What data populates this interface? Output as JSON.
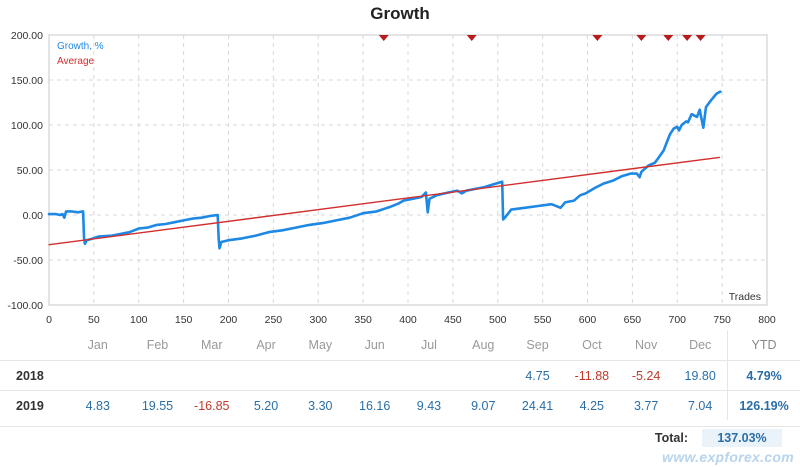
{
  "chart_data": {
    "type": "line",
    "title": "Growth",
    "xlabel": "Trades",
    "ylabel": "",
    "xlim": [
      0,
      800
    ],
    "ylim": [
      -100,
      200
    ],
    "x_ticks": [
      0,
      50,
      100,
      150,
      200,
      250,
      300,
      350,
      400,
      450,
      500,
      550,
      600,
      650,
      700,
      750,
      800
    ],
    "y_ticks": [
      "-100.00",
      "-50.00",
      "0.00",
      "50.00",
      "100.00",
      "150.00",
      "200.00"
    ],
    "y_tick_values": [
      -100,
      -50,
      0,
      50,
      100,
      150,
      200
    ],
    "grid": true,
    "legend_position": "top-left",
    "series": [
      {
        "name": "Growth, %",
        "color": "#1e88e5",
        "points": [
          [
            0,
            1
          ],
          [
            8,
            1
          ],
          [
            12,
            0
          ],
          [
            15,
            1
          ],
          [
            17,
            -3
          ],
          [
            19,
            4
          ],
          [
            25,
            4
          ],
          [
            32,
            3
          ],
          [
            38,
            4
          ],
          [
            39,
            -25
          ],
          [
            40,
            -32
          ],
          [
            42,
            -28
          ],
          [
            46,
            -27
          ],
          [
            55,
            -24
          ],
          [
            70,
            -23
          ],
          [
            80,
            -21
          ],
          [
            90,
            -19
          ],
          [
            100,
            -15
          ],
          [
            110,
            -14
          ],
          [
            120,
            -11
          ],
          [
            130,
            -10
          ],
          [
            140,
            -8
          ],
          [
            150,
            -6
          ],
          [
            160,
            -4
          ],
          [
            170,
            -3
          ],
          [
            180,
            -1
          ],
          [
            188,
            0
          ],
          [
            189,
            -25
          ],
          [
            190,
            -37
          ],
          [
            192,
            -30
          ],
          [
            200,
            -28
          ],
          [
            215,
            -26
          ],
          [
            230,
            -23
          ],
          [
            245,
            -19
          ],
          [
            260,
            -17
          ],
          [
            275,
            -14
          ],
          [
            290,
            -11
          ],
          [
            305,
            -9
          ],
          [
            320,
            -6
          ],
          [
            335,
            -3
          ],
          [
            350,
            2
          ],
          [
            365,
            4
          ],
          [
            380,
            9
          ],
          [
            390,
            13
          ],
          [
            395,
            16
          ],
          [
            405,
            18
          ],
          [
            415,
            20
          ],
          [
            420,
            25
          ],
          [
            422,
            3
          ],
          [
            424,
            18
          ],
          [
            432,
            22
          ],
          [
            445,
            25
          ],
          [
            455,
            27
          ],
          [
            460,
            24
          ],
          [
            465,
            27
          ],
          [
            475,
            29
          ],
          [
            485,
            31
          ],
          [
            495,
            34
          ],
          [
            505,
            37
          ],
          [
            506,
            -5
          ],
          [
            508,
            -3
          ],
          [
            515,
            6
          ],
          [
            530,
            8
          ],
          [
            545,
            10
          ],
          [
            560,
            12
          ],
          [
            570,
            8
          ],
          [
            575,
            14
          ],
          [
            585,
            16
          ],
          [
            592,
            22
          ],
          [
            598,
            24
          ],
          [
            608,
            30
          ],
          [
            618,
            35
          ],
          [
            628,
            38
          ],
          [
            638,
            43
          ],
          [
            648,
            46
          ],
          [
            655,
            46
          ],
          [
            658,
            42
          ],
          [
            660,
            48
          ],
          [
            668,
            55
          ],
          [
            675,
            58
          ],
          [
            678,
            62
          ],
          [
            685,
            72
          ],
          [
            688,
            80
          ],
          [
            692,
            90
          ],
          [
            696,
            96
          ],
          [
            700,
            98
          ],
          [
            702,
            94
          ],
          [
            705,
            100
          ],
          [
            710,
            104
          ],
          [
            712,
            103
          ],
          [
            716,
            112
          ],
          [
            722,
            109
          ],
          [
            725,
            117
          ],
          [
            729,
            97
          ],
          [
            732,
            120
          ],
          [
            738,
            128
          ],
          [
            744,
            135
          ],
          [
            748,
            137
          ]
        ]
      },
      {
        "name": "Average",
        "color": "#d32f2f",
        "points": [
          [
            0,
            -33
          ],
          [
            747,
            64
          ]
        ]
      }
    ],
    "markers": {
      "color": "#b71c1c",
      "x": [
        373,
        471,
        611,
        660,
        690,
        711,
        726
      ]
    }
  },
  "table": {
    "months": [
      "Jan",
      "Feb",
      "Mar",
      "Apr",
      "May",
      "Jun",
      "Jul",
      "Aug",
      "Sep",
      "Oct",
      "Nov",
      "Dec"
    ],
    "ytd_label": "YTD",
    "rows": [
      {
        "year": "2018",
        "values": [
          "",
          "",
          "",
          "",
          "",
          "",
          "",
          "",
          "4.75",
          "-11.88",
          "-5.24",
          "19.80"
        ],
        "ytd": "4.79%"
      },
      {
        "year": "2019",
        "values": [
          "4.83",
          "19.55",
          "-16.85",
          "5.20",
          "3.30",
          "16.16",
          "9.43",
          "9.07",
          "24.41",
          "4.25",
          "3.77",
          "7.04"
        ],
        "ytd": "126.19%"
      }
    ],
    "total_label": "Total:",
    "total_value": "137.03%"
  },
  "watermark": "www.expforex.com"
}
